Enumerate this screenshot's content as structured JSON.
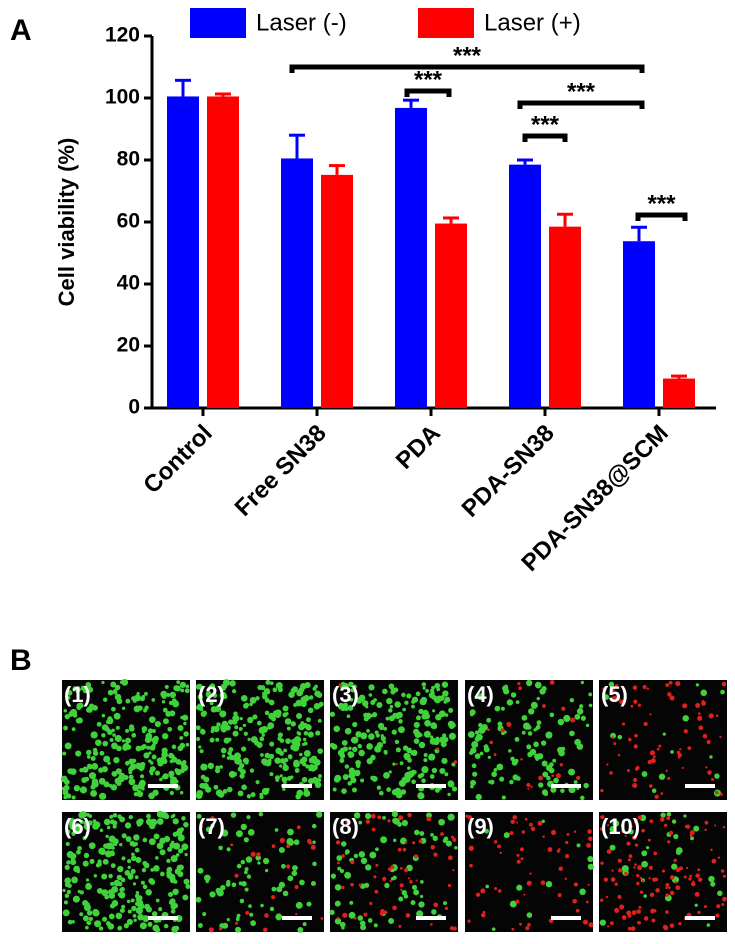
{
  "chart_data": {
    "type": "bar",
    "panel_label": "A",
    "ylabel": "Cell viability (%)",
    "categories": [
      "Control",
      "Free SN38",
      "PDA",
      "PDA-SN38",
      "PDA-SN38@SCM"
    ],
    "series": [
      {
        "name": "Laser (-)",
        "color": "#0000ff",
        "values": [
          100.5,
          80.5,
          96.8,
          78.5,
          53.8
        ],
        "errors": [
          5.2,
          7.5,
          2.5,
          1.5,
          4.5
        ]
      },
      {
        "name": "Laser (+)",
        "color": "#ff0000",
        "values": [
          100.5,
          75.2,
          59.5,
          58.5,
          9.5
        ],
        "errors": [
          0.8,
          3.0,
          1.8,
          4.0,
          0.8
        ]
      }
    ],
    "ylim": [
      0,
      120
    ],
    "yticks": [
      0,
      20,
      40,
      60,
      80,
      100,
      120
    ],
    "annotations": [
      "***",
      "***",
      "***",
      "***",
      "***"
    ]
  },
  "panel_b": {
    "label": "B",
    "tiles": [
      "(1)",
      "(2)",
      "(3)",
      "(4)",
      "(5)",
      "(6)",
      "(7)",
      "(8)",
      "(9)",
      "(10)"
    ]
  }
}
